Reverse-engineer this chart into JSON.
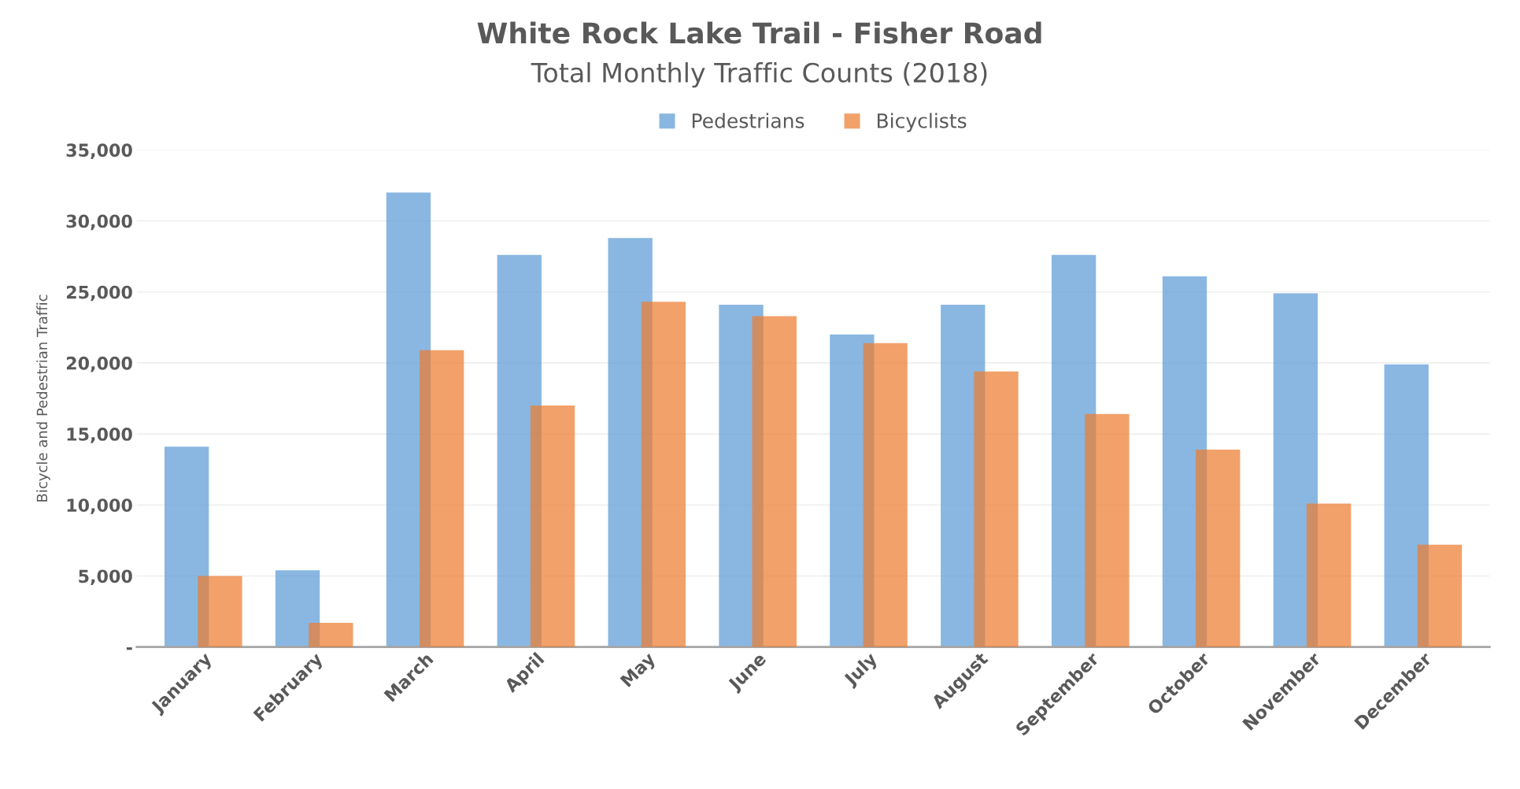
{
  "chart_data": {
    "type": "bar",
    "title": "White Rock Lake Trail - Fisher Road",
    "subtitle": "Total Monthly Traffic Counts (2018)",
    "ylabel": "Bicycle and Pedestrian Traffic",
    "categories": [
      "January",
      "February",
      "March",
      "April",
      "May",
      "June",
      "July",
      "August",
      "September",
      "October",
      "November",
      "December"
    ],
    "series": [
      {
        "name": "Pedestrians",
        "color": "#5b9bd5",
        "values": [
          14100,
          5400,
          32000,
          27600,
          28800,
          24100,
          22000,
          24100,
          27600,
          26100,
          24900,
          19900
        ]
      },
      {
        "name": "Bicyclists",
        "color": "#ed7d31",
        "values": [
          5000,
          1700,
          20900,
          17000,
          24300,
          23300,
          21400,
          19400,
          16400,
          13900,
          10100,
          7200
        ]
      }
    ],
    "ylim": [
      0,
      35000
    ],
    "yticks": [
      {
        "value": 0,
        "label": "-"
      },
      {
        "value": 5000,
        "label": "5,000"
      },
      {
        "value": 10000,
        "label": "10,000"
      },
      {
        "value": 15000,
        "label": "15,000"
      },
      {
        "value": 20000,
        "label": "20,000"
      },
      {
        "value": 25000,
        "label": "25,000"
      },
      {
        "value": 30000,
        "label": "30,000"
      },
      {
        "value": 35000,
        "label": "35,000"
      }
    ],
    "grid": "y",
    "legend": "top"
  }
}
